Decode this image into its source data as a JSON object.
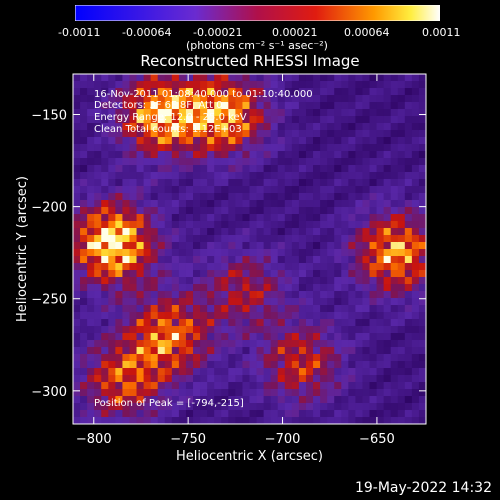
{
  "colorbar": {
    "ticks": [
      "-0.0011",
      "-0.00064",
      "-0.00021",
      "0.00021",
      "0.00064",
      "0.0011"
    ],
    "units_label": "(photons cm⁻² s⁻¹ asec⁻²)"
  },
  "overlay": {
    "time": "16-Nov-2011 01:08:40.000 to 01:10:40.000",
    "detectors": "Detectors: 3F 6F 8F, Att 0",
    "energy": "Energy Range: 12.0 - 25.0 keV",
    "clean": "Clean     Total counts: 1.12E+03",
    "peak": "Position of Peak = [-794,-215]"
  },
  "timestamp": "19-May-2022 14:32",
  "chart_data": {
    "type": "heatmap",
    "title": "Reconstructed RHESSI Image",
    "xlabel": "Heliocentric X (arcsec)",
    "ylabel": "Heliocentric Y (arcsec)",
    "xlim": [
      -811,
      -624
    ],
    "ylim": [
      -318,
      -128
    ],
    "xticks": [
      -800,
      -750,
      -700,
      -650
    ],
    "yticks": [
      -150,
      -200,
      -250,
      -300
    ],
    "colormap": "blue-purple-red-yellow-white",
    "value_range": [
      -0.0011,
      0.0011
    ],
    "peak": [
      -794,
      -215
    ],
    "sources": [
      {
        "x": -790,
        "y": -220,
        "strength": 1.0
      },
      {
        "x": -765,
        "y": -150,
        "strength": 0.85
      },
      {
        "x": -730,
        "y": -150,
        "strength": 0.8
      },
      {
        "x": -640,
        "y": -225,
        "strength": 0.8
      },
      {
        "x": -760,
        "y": -270,
        "strength": 0.7
      },
      {
        "x": -785,
        "y": -295,
        "strength": 0.6
      },
      {
        "x": -690,
        "y": -285,
        "strength": 0.55
      },
      {
        "x": -720,
        "y": -245,
        "strength": 0.45
      }
    ]
  }
}
